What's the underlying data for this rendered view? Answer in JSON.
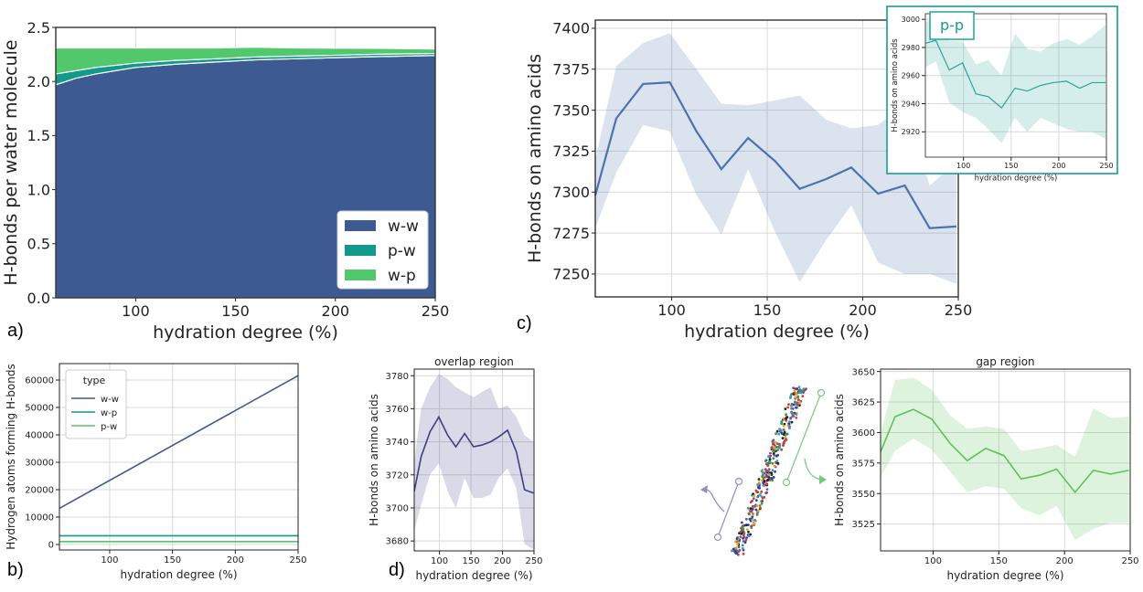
{
  "panel_letters": {
    "a": "a)",
    "b": "b)",
    "c": "c)",
    "d": "d)"
  },
  "chart_data": [
    {
      "id": "a",
      "type": "area",
      "stacked": true,
      "xlabel": "hydration degree (%)",
      "ylabel": "H-bonds per water molecule",
      "xlim": [
        60,
        250
      ],
      "ylim": [
        0,
        2.5
      ],
      "xticks": [
        "100",
        "150",
        "200",
        "250"
      ],
      "yticks": [
        "0.0",
        "0.5",
        "1.0",
        "1.5",
        "2.0",
        "2.5"
      ],
      "legend": {
        "position": "lower-right"
      },
      "x": [
        60,
        70,
        80,
        90,
        100,
        120,
        140,
        160,
        180,
        200,
        220,
        250
      ],
      "series": [
        {
          "name": "w-w",
          "color": "#3d5a92",
          "values": [
            1.97,
            2.03,
            2.07,
            2.1,
            2.13,
            2.16,
            2.18,
            2.2,
            2.21,
            2.22,
            2.23,
            2.24
          ]
        },
        {
          "name": "p-w",
          "color": "#13998b",
          "values": [
            0.1,
            0.07,
            0.06,
            0.05,
            0.04,
            0.035,
            0.03,
            0.027,
            0.025,
            0.023,
            0.022,
            0.02
          ]
        },
        {
          "name": "w-p",
          "color": "#52c86d",
          "values": [
            0.24,
            0.21,
            0.18,
            0.16,
            0.14,
            0.115,
            0.1,
            0.09,
            0.075,
            0.065,
            0.055,
            0.04
          ]
        }
      ]
    },
    {
      "id": "b",
      "type": "line",
      "xlabel": "hydration degree (%)",
      "ylabel": "Hydrogen atoms forming H-bonds",
      "xlim": [
        60,
        250
      ],
      "ylim": [
        -2000,
        66000
      ],
      "xticks": [
        "100",
        "150",
        "200",
        "250"
      ],
      "yticks": [
        "0",
        "10000",
        "20000",
        "30000",
        "40000",
        "50000",
        "60000"
      ],
      "legend": {
        "position": "top-left",
        "title": "type"
      },
      "x": [
        60,
        250
      ],
      "series": [
        {
          "name": "w-w",
          "color": "#3d5a92",
          "values": [
            13200,
            61600
          ]
        },
        {
          "name": "w-p",
          "color": "#13998b",
          "values": [
            3200,
            3200
          ]
        },
        {
          "name": "p-w",
          "color": "#52c86d",
          "values": [
            1050,
            1050
          ]
        }
      ]
    },
    {
      "id": "c",
      "type": "line",
      "xlabel": "hydration degree (%)",
      "ylabel": "H-bonds on amino acids",
      "xlim": [
        60,
        250
      ],
      "ylim": [
        7236,
        7405
      ],
      "xticks": [
        "100",
        "150",
        "200",
        "250"
      ],
      "yticks": [
        "7250",
        "7275",
        "7300",
        "7325",
        "7350",
        "7375",
        "7400"
      ],
      "x": [
        60,
        71,
        85,
        99,
        113,
        126,
        140,
        154,
        167,
        181,
        194,
        208,
        222,
        235,
        249
      ],
      "series": [
        {
          "name": "",
          "color": "#4c72b0",
          "values": [
            7298,
            7345,
            7366,
            7367,
            7337,
            7314,
            7333,
            7319,
            7302,
            7308,
            7315,
            7299,
            7304,
            7278,
            7279
          ],
          "band_high": [
            7320,
            7377,
            7391,
            7397,
            7375,
            7354,
            7353,
            7356,
            7359,
            7344,
            7339,
            7341,
            7353,
            7304,
            7318
          ],
          "band_low": [
            7278,
            7312,
            7341,
            7337,
            7298,
            7274,
            7314,
            7276,
            7245,
            7271,
            7292,
            7257,
            7250,
            7250,
            7244
          ]
        }
      ]
    },
    {
      "id": "c-inset",
      "type": "line",
      "title": "p-p",
      "xlabel": "hydration degree (%)",
      "ylabel": "H-bonds on amino acids",
      "xlim": [
        60,
        250
      ],
      "ylim": [
        2902,
        3004
      ],
      "xticks": [
        "100",
        "150",
        "200",
        "250"
      ],
      "yticks": [
        "2920",
        "2940",
        "2960",
        "2980",
        "3000"
      ],
      "x": [
        60,
        71,
        85,
        99,
        113,
        126,
        140,
        154,
        167,
        181,
        194,
        208,
        222,
        235,
        249
      ],
      "series": [
        {
          "name": "",
          "color": "#2ea39a",
          "values": [
            2983,
            2985,
            2964,
            2969,
            2947,
            2945,
            2937,
            2951,
            2949,
            2953,
            2955,
            2956,
            2951,
            2955,
            2955
          ],
          "band_high": [
            2998,
            3001,
            2985,
            2984,
            2968,
            2971,
            2960,
            2990,
            2979,
            2977,
            2983,
            2986,
            2982,
            2988,
            2996
          ],
          "band_low": [
            2966,
            2970,
            2941,
            2934,
            2930,
            2922,
            2912,
            2930,
            2920,
            2930,
            2926,
            2922,
            2920,
            2920,
            2915
          ]
        }
      ]
    },
    {
      "id": "d-overlap",
      "type": "line",
      "title": "overlap region",
      "xlabel": "hydration degree (%)",
      "ylabel": "H-bonds on amino acids",
      "xlim": [
        60,
        250
      ],
      "ylim": [
        3674,
        3784
      ],
      "xticks": [
        "100",
        "150",
        "200",
        "250"
      ],
      "yticks": [
        "3680",
        "3700",
        "3720",
        "3740",
        "3760",
        "3780"
      ],
      "x": [
        60,
        71,
        85,
        99,
        113,
        126,
        140,
        154,
        167,
        181,
        194,
        208,
        222,
        235,
        249
      ],
      "series": [
        {
          "name": "",
          "color": "#3f3f86",
          "values": [
            3710,
            3731,
            3746,
            3755,
            3744,
            3737,
            3745,
            3737,
            3738,
            3740,
            3743,
            3747,
            3734,
            3711,
            3709
          ],
          "band_high": [
            3728,
            3760,
            3773,
            3781,
            3778,
            3773,
            3770,
            3767,
            3770,
            3773,
            3760,
            3762,
            3755,
            3744,
            3740
          ],
          "band_low": [
            3686,
            3702,
            3720,
            3727,
            3710,
            3700,
            3718,
            3706,
            3706,
            3708,
            3718,
            3724,
            3712,
            3678,
            3675
          ]
        }
      ]
    },
    {
      "id": "d-gap",
      "type": "line",
      "title": "gap region",
      "xlabel": "hydration degree (%)",
      "ylabel": "H-bonds on amino acids",
      "xlim": [
        60,
        250
      ],
      "ylim": [
        3503,
        3652
      ],
      "xticks": [
        "100",
        "150",
        "200",
        "250"
      ],
      "yticks": [
        "3525",
        "3550",
        "3575",
        "3600",
        "3625",
        "3650"
      ],
      "x": [
        60,
        71,
        85,
        99,
        113,
        126,
        140,
        154,
        167,
        181,
        194,
        208,
        222,
        235,
        249
      ],
      "series": [
        {
          "name": "",
          "color": "#5bc456",
          "values": [
            3584,
            3613,
            3619,
            3611,
            3591,
            3577,
            3587,
            3581,
            3562,
            3565,
            3570,
            3551,
            3569,
            3566,
            3569
          ],
          "band_high": [
            3600,
            3643,
            3645,
            3635,
            3614,
            3603,
            3605,
            3603,
            3585,
            3587,
            3590,
            3580,
            3620,
            3612,
            3613
          ],
          "band_low": [
            3563,
            3585,
            3595,
            3586,
            3568,
            3551,
            3556,
            3554,
            3538,
            3532,
            3540,
            3512,
            3521,
            3526,
            3526
          ]
        }
      ]
    }
  ]
}
